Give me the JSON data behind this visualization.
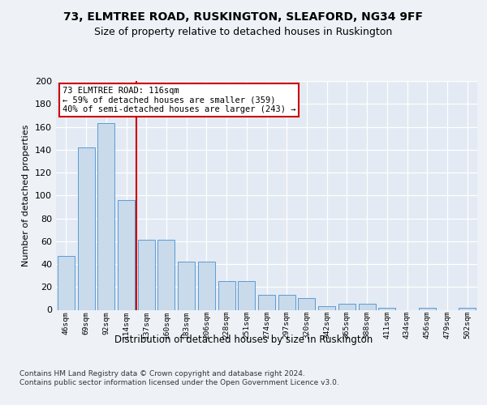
{
  "title1": "73, ELMTREE ROAD, RUSKINGTON, SLEAFORD, NG34 9FF",
  "title2": "Size of property relative to detached houses in Ruskington",
  "xlabel": "Distribution of detached houses by size in Ruskington",
  "ylabel": "Number of detached properties",
  "bar_labels": [
    "46sqm",
    "69sqm",
    "92sqm",
    "114sqm",
    "137sqm",
    "160sqm",
    "183sqm",
    "206sqm",
    "228sqm",
    "251sqm",
    "274sqm",
    "297sqm",
    "320sqm",
    "342sqm",
    "365sqm",
    "388sqm",
    "411sqm",
    "434sqm",
    "456sqm",
    "479sqm",
    "502sqm"
  ],
  "bar_values": [
    47,
    142,
    163,
    96,
    61,
    61,
    42,
    42,
    25,
    25,
    13,
    13,
    10,
    3,
    5,
    5,
    2,
    0,
    2,
    0,
    2
  ],
  "bar_color": "#c9daea",
  "bar_edge_color": "#5b9bd5",
  "vline_x": 3.5,
  "vline_color": "#cc0000",
  "annotation_text": "73 ELMTREE ROAD: 116sqm\n← 59% of detached houses are smaller (359)\n40% of semi-detached houses are larger (243) →",
  "annotation_box_color": "#ffffff",
  "annotation_box_edge": "#cc0000",
  "footer": "Contains HM Land Registry data © Crown copyright and database right 2024.\nContains public sector information licensed under the Open Government Licence v3.0.",
  "ylim": [
    0,
    200
  ],
  "yticks": [
    0,
    20,
    40,
    60,
    80,
    100,
    120,
    140,
    160,
    180,
    200
  ],
  "bg_color": "#eef2f7",
  "plot_bg_color": "#e3eaf3",
  "grid_color": "#ffffff",
  "title1_fontsize": 10,
  "title2_fontsize": 9
}
